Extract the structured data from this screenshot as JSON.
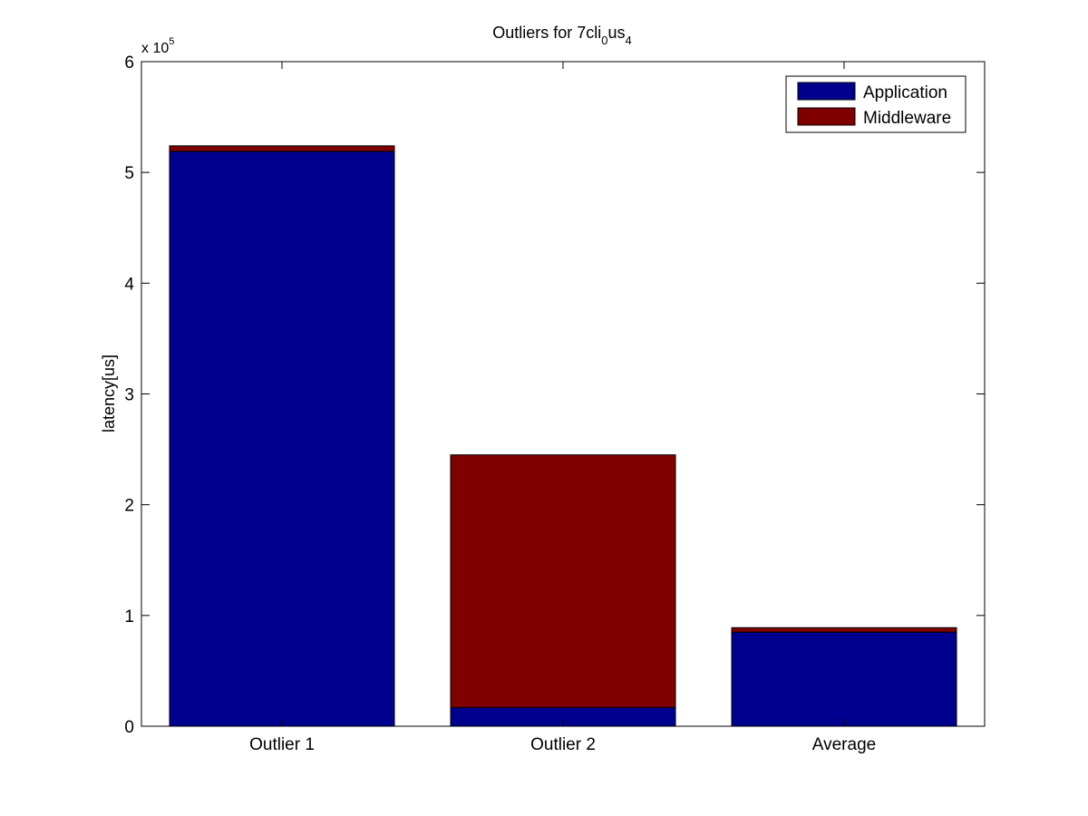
{
  "chart_data": {
    "type": "bar",
    "stacked": true,
    "title": {
      "base": "Outliers for 7cli",
      "sub1": "0",
      "mid": "us",
      "sub2": "4"
    },
    "xlabel": "",
    "ylabel": "latency[us]",
    "y_exponent": {
      "base": "x 10",
      "power": "5"
    },
    "categories": [
      "Outlier 1",
      "Outlier 2",
      "Average"
    ],
    "series": [
      {
        "name": "Application",
        "color": "#00008f",
        "values": [
          5.19,
          0.17,
          0.85
        ]
      },
      {
        "name": "Middleware",
        "color": "#800000",
        "values": [
          0.05,
          2.28,
          0.04
        ]
      }
    ],
    "ylim": [
      0,
      6
    ],
    "yticks": [
      "0",
      "1",
      "2",
      "3",
      "4",
      "5",
      "6"
    ],
    "legend_position": "top-right",
    "grid": false
  }
}
